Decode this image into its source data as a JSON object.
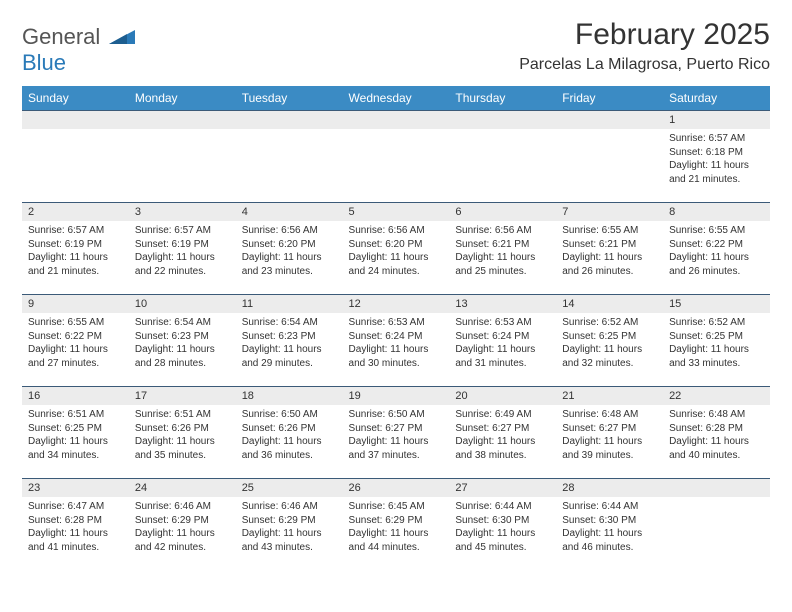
{
  "logo": {
    "general": "General",
    "blue": "Blue"
  },
  "header": {
    "title": "February 2025",
    "location": "Parcelas La Milagrosa, Puerto Rico"
  },
  "colors": {
    "header_bg": "#3b8bc4",
    "header_text": "#ffffff",
    "row_border": "#3b5a78",
    "daynum_bg": "#ececec",
    "text": "#333333",
    "logo_blue": "#2a7ab8"
  },
  "day_names": [
    "Sunday",
    "Monday",
    "Tuesday",
    "Wednesday",
    "Thursday",
    "Friday",
    "Saturday"
  ],
  "weeks": [
    [
      {
        "day": "",
        "lines": []
      },
      {
        "day": "",
        "lines": []
      },
      {
        "day": "",
        "lines": []
      },
      {
        "day": "",
        "lines": []
      },
      {
        "day": "",
        "lines": []
      },
      {
        "day": "",
        "lines": []
      },
      {
        "day": "1",
        "lines": [
          "Sunrise: 6:57 AM",
          "Sunset: 6:18 PM",
          "Daylight: 11 hours and 21 minutes."
        ]
      }
    ],
    [
      {
        "day": "2",
        "lines": [
          "Sunrise: 6:57 AM",
          "Sunset: 6:19 PM",
          "Daylight: 11 hours and 21 minutes."
        ]
      },
      {
        "day": "3",
        "lines": [
          "Sunrise: 6:57 AM",
          "Sunset: 6:19 PM",
          "Daylight: 11 hours and 22 minutes."
        ]
      },
      {
        "day": "4",
        "lines": [
          "Sunrise: 6:56 AM",
          "Sunset: 6:20 PM",
          "Daylight: 11 hours and 23 minutes."
        ]
      },
      {
        "day": "5",
        "lines": [
          "Sunrise: 6:56 AM",
          "Sunset: 6:20 PM",
          "Daylight: 11 hours and 24 minutes."
        ]
      },
      {
        "day": "6",
        "lines": [
          "Sunrise: 6:56 AM",
          "Sunset: 6:21 PM",
          "Daylight: 11 hours and 25 minutes."
        ]
      },
      {
        "day": "7",
        "lines": [
          "Sunrise: 6:55 AM",
          "Sunset: 6:21 PM",
          "Daylight: 11 hours and 26 minutes."
        ]
      },
      {
        "day": "8",
        "lines": [
          "Sunrise: 6:55 AM",
          "Sunset: 6:22 PM",
          "Daylight: 11 hours and 26 minutes."
        ]
      }
    ],
    [
      {
        "day": "9",
        "lines": [
          "Sunrise: 6:55 AM",
          "Sunset: 6:22 PM",
          "Daylight: 11 hours and 27 minutes."
        ]
      },
      {
        "day": "10",
        "lines": [
          "Sunrise: 6:54 AM",
          "Sunset: 6:23 PM",
          "Daylight: 11 hours and 28 minutes."
        ]
      },
      {
        "day": "11",
        "lines": [
          "Sunrise: 6:54 AM",
          "Sunset: 6:23 PM",
          "Daylight: 11 hours and 29 minutes."
        ]
      },
      {
        "day": "12",
        "lines": [
          "Sunrise: 6:53 AM",
          "Sunset: 6:24 PM",
          "Daylight: 11 hours and 30 minutes."
        ]
      },
      {
        "day": "13",
        "lines": [
          "Sunrise: 6:53 AM",
          "Sunset: 6:24 PM",
          "Daylight: 11 hours and 31 minutes."
        ]
      },
      {
        "day": "14",
        "lines": [
          "Sunrise: 6:52 AM",
          "Sunset: 6:25 PM",
          "Daylight: 11 hours and 32 minutes."
        ]
      },
      {
        "day": "15",
        "lines": [
          "Sunrise: 6:52 AM",
          "Sunset: 6:25 PM",
          "Daylight: 11 hours and 33 minutes."
        ]
      }
    ],
    [
      {
        "day": "16",
        "lines": [
          "Sunrise: 6:51 AM",
          "Sunset: 6:25 PM",
          "Daylight: 11 hours and 34 minutes."
        ]
      },
      {
        "day": "17",
        "lines": [
          "Sunrise: 6:51 AM",
          "Sunset: 6:26 PM",
          "Daylight: 11 hours and 35 minutes."
        ]
      },
      {
        "day": "18",
        "lines": [
          "Sunrise: 6:50 AM",
          "Sunset: 6:26 PM",
          "Daylight: 11 hours and 36 minutes."
        ]
      },
      {
        "day": "19",
        "lines": [
          "Sunrise: 6:50 AM",
          "Sunset: 6:27 PM",
          "Daylight: 11 hours and 37 minutes."
        ]
      },
      {
        "day": "20",
        "lines": [
          "Sunrise: 6:49 AM",
          "Sunset: 6:27 PM",
          "Daylight: 11 hours and 38 minutes."
        ]
      },
      {
        "day": "21",
        "lines": [
          "Sunrise: 6:48 AM",
          "Sunset: 6:27 PM",
          "Daylight: 11 hours and 39 minutes."
        ]
      },
      {
        "day": "22",
        "lines": [
          "Sunrise: 6:48 AM",
          "Sunset: 6:28 PM",
          "Daylight: 11 hours and 40 minutes."
        ]
      }
    ],
    [
      {
        "day": "23",
        "lines": [
          "Sunrise: 6:47 AM",
          "Sunset: 6:28 PM",
          "Daylight: 11 hours and 41 minutes."
        ]
      },
      {
        "day": "24",
        "lines": [
          "Sunrise: 6:46 AM",
          "Sunset: 6:29 PM",
          "Daylight: 11 hours and 42 minutes."
        ]
      },
      {
        "day": "25",
        "lines": [
          "Sunrise: 6:46 AM",
          "Sunset: 6:29 PM",
          "Daylight: 11 hours and 43 minutes."
        ]
      },
      {
        "day": "26",
        "lines": [
          "Sunrise: 6:45 AM",
          "Sunset: 6:29 PM",
          "Daylight: 11 hours and 44 minutes."
        ]
      },
      {
        "day": "27",
        "lines": [
          "Sunrise: 6:44 AM",
          "Sunset: 6:30 PM",
          "Daylight: 11 hours and 45 minutes."
        ]
      },
      {
        "day": "28",
        "lines": [
          "Sunrise: 6:44 AM",
          "Sunset: 6:30 PM",
          "Daylight: 11 hours and 46 minutes."
        ]
      },
      {
        "day": "",
        "lines": []
      }
    ]
  ]
}
